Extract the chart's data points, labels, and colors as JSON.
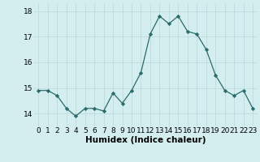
{
  "x": [
    0,
    1,
    2,
    3,
    4,
    5,
    6,
    7,
    8,
    9,
    10,
    11,
    12,
    13,
    14,
    15,
    16,
    17,
    18,
    19,
    20,
    21,
    22,
    23
  ],
  "y": [
    14.9,
    14.9,
    14.7,
    14.2,
    13.9,
    14.2,
    14.2,
    14.1,
    14.8,
    14.4,
    14.9,
    15.6,
    17.1,
    17.8,
    17.5,
    17.8,
    17.2,
    17.1,
    16.5,
    15.5,
    14.9,
    14.7,
    14.9,
    14.2
  ],
  "xlabel": "Humidex (Indice chaleur)",
  "ylim": [
    13.5,
    18.3
  ],
  "xlim": [
    -0.5,
    23.5
  ],
  "bg_color": "#d4eef0",
  "grid_color": "#b8d8da",
  "line_color": "#2a6b6b",
  "marker_color": "#2a6b6b",
  "yticks": [
    14,
    15,
    16,
    17,
    18
  ],
  "xticks": [
    0,
    1,
    2,
    3,
    4,
    5,
    6,
    7,
    8,
    9,
    10,
    11,
    12,
    13,
    14,
    15,
    16,
    17,
    18,
    19,
    20,
    21,
    22,
    23
  ],
  "xlabel_fontsize": 7.5,
  "tick_fontsize": 6.5
}
